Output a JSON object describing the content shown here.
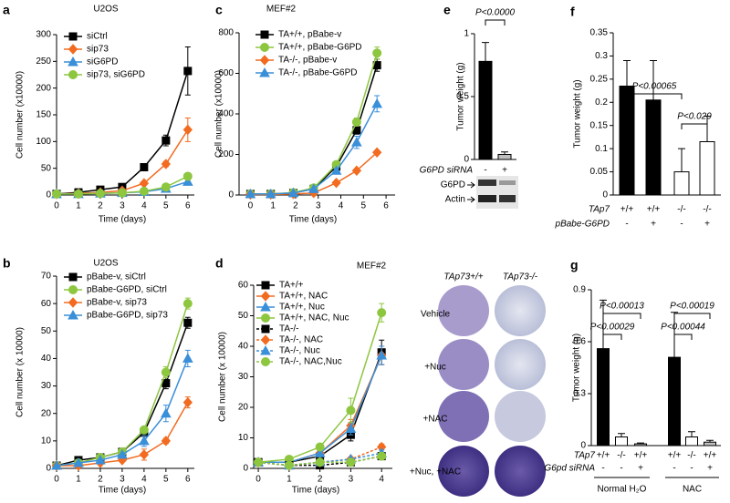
{
  "chart_data": [
    {
      "type": "line",
      "panel": "a",
      "title": "U2OS",
      "x_label": "Time (days)",
      "y_label": "Cell number (x10000)",
      "x": [
        0,
        1,
        2,
        3,
        4,
        5,
        6
      ],
      "xlim": [
        0,
        6.3
      ],
      "xticks": [
        0,
        1,
        2,
        3,
        4,
        5,
        6
      ],
      "ylim": [
        0,
        300
      ],
      "yticks": [
        0,
        50,
        100,
        150,
        200,
        250,
        300
      ],
      "series": [
        {
          "name": "siCtrl",
          "color": "#000000",
          "marker": "square",
          "values": [
            2,
            5,
            10,
            15,
            52,
            102,
            232
          ],
          "errors": [
            null,
            null,
            null,
            null,
            3,
            10,
            45
          ]
        },
        {
          "name": "sip73",
          "color": "#f26b21",
          "marker": "diamond",
          "values": [
            2,
            3,
            5,
            8,
            22,
            58,
            122
          ],
          "errors": [
            null,
            null,
            null,
            null,
            null,
            5,
            22
          ]
        },
        {
          "name": "siG6PD",
          "color": "#3a8fd9",
          "marker": "triangle",
          "values": [
            2,
            2,
            3,
            4,
            6,
            12,
            25
          ],
          "errors": [
            null,
            null,
            null,
            null,
            null,
            null,
            5
          ]
        },
        {
          "name": "sip73, siG6PD",
          "color": "#8dc63f",
          "marker": "circle",
          "values": [
            2,
            2,
            3,
            4,
            7,
            15,
            35
          ],
          "errors": [
            null,
            null,
            null,
            null,
            null,
            null,
            6
          ]
        }
      ]
    },
    {
      "type": "line",
      "panel": "b",
      "title": "U2OS",
      "x_label": "Time (days)",
      "y_label": "Cell number (x 10000)",
      "x": [
        0,
        1,
        2,
        3,
        4,
        5,
        6
      ],
      "xlim": [
        0,
        6.3
      ],
      "xticks": [
        0,
        1,
        2,
        3,
        4,
        5,
        6
      ],
      "ylim": [
        0,
        70
      ],
      "yticks": [
        0,
        10,
        20,
        30,
        40,
        50,
        60,
        70
      ],
      "series": [
        {
          "name": "pBabe-v, siCtrl",
          "color": "#000000",
          "marker": "square",
          "values": [
            1,
            3,
            4,
            6,
            13,
            31,
            53
          ],
          "errors": [
            null,
            null,
            null,
            null,
            1,
            2,
            2
          ]
        },
        {
          "name": "pBabe-G6PD, siCtrl",
          "color": "#8dc63f",
          "marker": "circle",
          "values": [
            1,
            2,
            4,
            6,
            14,
            35,
            60
          ],
          "errors": [
            null,
            null,
            null,
            null,
            1,
            2,
            2
          ]
        },
        {
          "name": "pBabe-v, sip73",
          "color": "#f26b21",
          "marker": "diamond",
          "values": [
            1,
            1,
            2,
            3,
            5,
            10,
            24
          ],
          "errors": [
            null,
            null,
            null,
            null,
            2,
            1,
            2
          ]
        },
        {
          "name": "pBabe-G6PD, sip73",
          "color": "#3a8fd9",
          "marker": "triangle",
          "values": [
            1,
            2,
            3,
            5,
            10,
            20,
            40
          ],
          "errors": [
            null,
            null,
            null,
            null,
            2,
            3,
            3
          ]
        }
      ]
    },
    {
      "type": "line",
      "panel": "c",
      "title": "MEF#2",
      "x_label": "Time (days)",
      "y_label": "Cell number (x10000)",
      "x": [
        0,
        0.9,
        1.9,
        2.8,
        3.8,
        4.7,
        5.6
      ],
      "xlim": [
        -0.5,
        6.4
      ],
      "xticks": [
        0,
        1,
        2,
        3,
        4,
        5,
        6
      ],
      "ylim": [
        0,
        800
      ],
      "yticks": [
        0,
        200,
        400,
        600,
        800
      ],
      "series": [
        {
          "name": "TA+/+, pBabe-v",
          "color": "#000000",
          "marker": "square",
          "values": [
            5,
            5,
            10,
            30,
            140,
            320,
            640
          ],
          "errors": [
            null,
            null,
            null,
            null,
            10,
            20,
            30
          ]
        },
        {
          "name": "TA+/+, pBabe-G6PD",
          "color": "#8dc63f",
          "marker": "circle",
          "values": [
            5,
            5,
            12,
            35,
            150,
            360,
            700
          ],
          "errors": [
            null,
            null,
            null,
            null,
            10,
            20,
            30
          ]
        },
        {
          "name": "TA-/-, pBabe-v",
          "color": "#f26b21",
          "marker": "diamond",
          "values": [
            3,
            3,
            5,
            10,
            60,
            120,
            210
          ],
          "errors": [
            null,
            null,
            null,
            null,
            null,
            null,
            5
          ]
        },
        {
          "name": "TA-/-, pBabe-G6PD",
          "color": "#3a8fd9",
          "marker": "triangle",
          "values": [
            5,
            5,
            10,
            30,
            120,
            260,
            450
          ],
          "errors": [
            null,
            null,
            null,
            null,
            10,
            30,
            40
          ]
        }
      ]
    },
    {
      "type": "line",
      "panel": "d",
      "title": "MEF#2",
      "x_label": "Time (days)",
      "y_label": "Cell number (x 10000)",
      "x": [
        0,
        1,
        2,
        3,
        4
      ],
      "xlim": [
        -0.15,
        4.35
      ],
      "xticks": [
        0,
        1,
        2,
        3,
        4
      ],
      "ylim": [
        0,
        60
      ],
      "yticks": [
        0,
        10,
        20,
        30,
        40,
        50,
        60
      ],
      "series": [
        {
          "name": "TA+/+",
          "color": "#000000",
          "marker": "square",
          "values": [
            2,
            2,
            4,
            11,
            38
          ],
          "errors": [
            null,
            null,
            null,
            2,
            4
          ]
        },
        {
          "name": "TA+/+, NAC",
          "color": "#f26b21",
          "marker": "diamond",
          "values": [
            2,
            2,
            5,
            14,
            37
          ],
          "errors": [
            null,
            null,
            null,
            2,
            3
          ]
        },
        {
          "name": "TA+/+, Nuc",
          "color": "#3a8fd9",
          "marker": "triangle",
          "values": [
            2,
            2,
            5,
            13,
            37
          ],
          "errors": [
            null,
            null,
            null,
            2,
            3
          ]
        },
        {
          "name": "TA+/+, NAC, Nuc",
          "color": "#8dc63f",
          "label_color": "#8dc63f",
          "marker": "circle",
          "values": [
            2,
            3,
            7,
            19,
            51
          ],
          "errors": [
            null,
            null,
            null,
            4,
            3
          ]
        },
        {
          "name": "TA-/-",
          "color": "#000000",
          "marker": "square",
          "dashed": true,
          "values": [
            2,
            1,
            1,
            2,
            4
          ],
          "errors": [
            null,
            null,
            null,
            null,
            1
          ]
        },
        {
          "name": "TA-/-, NAC",
          "color": "#f26b21",
          "marker": "diamond",
          "dashed": true,
          "values": [
            2,
            1,
            2,
            3,
            7
          ],
          "errors": [
            null,
            null,
            null,
            null,
            1
          ]
        },
        {
          "name": "TA-/-, Nuc",
          "color": "#3a8fd9",
          "marker": "triangle",
          "dashed": true,
          "values": [
            2,
            1,
            2,
            3,
            5
          ],
          "errors": [
            null,
            null,
            null,
            null,
            1
          ]
        },
        {
          "name": "TA-/-, NAC,Nuc",
          "color": "#8dc63f",
          "label_color": "#8dc63f",
          "marker": "circle",
          "dashed": true,
          "values": [
            2,
            1,
            2,
            2,
            4
          ],
          "errors": [
            null,
            null,
            null,
            null,
            1
          ]
        }
      ],
      "image_columns": [
        "TAp73+/+",
        "TAp73-/-"
      ],
      "image_rows": [
        "Vehicle",
        "+Nuc",
        "+NAC",
        "+Nuc, +NAC"
      ]
    },
    {
      "type": "bar",
      "panel": "e",
      "y_label": "Tumor weight (g)",
      "ylim": [
        0,
        1
      ],
      "yticks": [
        0,
        0.5,
        1
      ],
      "values": [
        0.78,
        0.04
      ],
      "errors": [
        0.15,
        0.02
      ],
      "colors": [
        "#000000",
        "#bfbfbf"
      ],
      "category_rows": [
        {
          "label": "G6PD siRNA",
          "values": [
            "-",
            "+"
          ]
        }
      ],
      "annotations": [
        "P<0.0000"
      ],
      "blot_labels": [
        "G6PD",
        "Actin"
      ]
    },
    {
      "type": "bar",
      "panel": "f",
      "y_label": "Tumor weight (g)",
      "ylim": [
        0,
        0.35
      ],
      "yticks": [
        0,
        0.05,
        0.1,
        0.15,
        0.2,
        0.25,
        0.3,
        0.35
      ],
      "values": [
        0.235,
        0.205,
        0.05,
        0.115
      ],
      "errors": [
        0.055,
        0.085,
        0.05,
        0.055
      ],
      "colors": [
        "#000000",
        "#000000",
        "#ffffff",
        "#ffffff"
      ],
      "category_rows": [
        {
          "label": "TAp7",
          "values": [
            "+/+",
            "+/+",
            "-/-",
            "-/-"
          ]
        },
        {
          "label": "pBabe-G6PD",
          "values": [
            "-",
            "+",
            "-",
            "+"
          ]
        }
      ],
      "annotations": [
        "P<0.00065",
        "P<0.029"
      ]
    },
    {
      "type": "bar",
      "panel": "g",
      "y_label": "Tumor weight (g)",
      "ylim": [
        0,
        0.9
      ],
      "yticks": [
        0,
        0.3,
        0.6,
        0.9
      ],
      "values": [
        0.56,
        0.05,
        0.01,
        0.51,
        0.05,
        0.02
      ],
      "errors": [
        0.28,
        0.02,
        0.005,
        0.26,
        0.03,
        0.01
      ],
      "colors": [
        "#000000",
        "#ffffff",
        "#bfbfbf",
        "#000000",
        "#ffffff",
        "#bfbfbf"
      ],
      "category_rows": [
        {
          "label": "TAp7",
          "values": [
            "+/+",
            "-/-",
            "+/+",
            "+/+",
            "-/-",
            "+/+"
          ]
        },
        {
          "label": "G6pd siRNA",
          "values": [
            "-",
            "-",
            "+",
            "-",
            "-",
            "+"
          ]
        }
      ],
      "groups": [
        "Normal H₂O",
        "NAC"
      ],
      "annotations": [
        "P<0.00013",
        "P<0.00029",
        "P<0.00019",
        "P<0.00044"
      ]
    }
  ]
}
